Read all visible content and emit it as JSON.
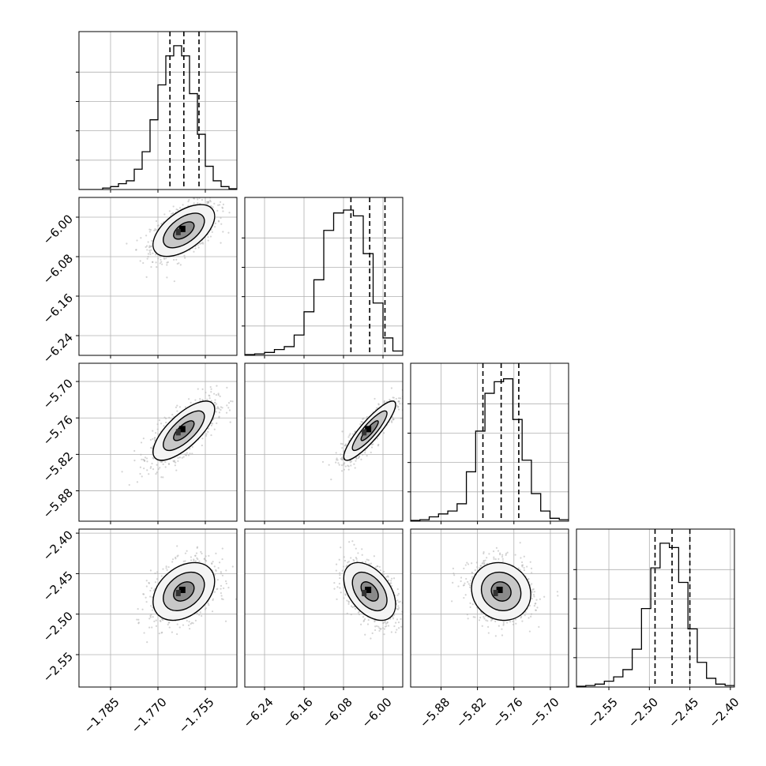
{
  "chart_data": {
    "type": "corner",
    "dimensions": [
      {
        "index": 0,
        "range": [
          -1.795,
          -1.745
        ],
        "ticks": [
          "-1.785",
          "-1.770",
          "-1.755"
        ],
        "quantiles": [
          -1.7662,
          -1.7618,
          -1.757
        ],
        "hist": [
          0,
          0,
          0,
          0.01,
          0.02,
          0.04,
          0.06,
          0.14,
          0.26,
          0.48,
          0.72,
          0.92,
          0.99,
          0.92,
          0.66,
          0.38,
          0.16,
          0.06,
          0.02,
          0.005
        ]
      },
      {
        "index": 1,
        "range": [
          -6.28,
          -5.96
        ],
        "ticks": [
          "-6.24",
          "-6.16",
          "-6.08",
          "-6.00"
        ],
        "quantiles": [
          -6.065,
          -6.027,
          -5.996
        ],
        "hist": [
          0.005,
          0.01,
          0.02,
          0.04,
          0.06,
          0.14,
          0.3,
          0.52,
          0.86,
          0.98,
          1.0,
          0.96,
          0.7,
          0.36,
          0.12,
          0.03
        ]
      },
      {
        "index": 2,
        "range": [
          -5.93,
          -5.67
        ],
        "ticks": [
          "-5.88",
          "-5.82",
          "-5.76",
          "-5.70"
        ],
        "quantiles": [
          -5.811,
          -5.781,
          -5.752
        ],
        "hist": [
          0.005,
          0.01,
          0.03,
          0.05,
          0.07,
          0.12,
          0.34,
          0.62,
          0.88,
          0.96,
          0.98,
          0.7,
          0.42,
          0.19,
          0.07,
          0.02,
          0.01
        ]
      },
      {
        "index": 3,
        "range": [
          -2.59,
          -2.395
        ],
        "ticks": [
          "-2.55",
          "-2.50",
          "-2.45",
          "-2.40"
        ],
        "quantiles": [
          -2.493,
          -2.472,
          -2.45
        ],
        "hist": [
          0.005,
          0.01,
          0.02,
          0.04,
          0.07,
          0.12,
          0.26,
          0.54,
          0.82,
          0.99,
          0.96,
          0.72,
          0.4,
          0.17,
          0.06,
          0.02,
          0.01
        ]
      }
    ],
    "pairs": [
      {
        "row": 1,
        "col": 0,
        "mean": [
          -1.7618,
          -6.027
        ],
        "sd": [
          0.0052,
          0.028
        ],
        "corr": 0.55
      },
      {
        "row": 2,
        "col": 0,
        "mean": [
          -1.7618,
          -5.781
        ],
        "sd": [
          0.0052,
          0.026
        ],
        "corr": 0.72
      },
      {
        "row": 2,
        "col": 1,
        "mean": [
          -6.027,
          -5.781
        ],
        "sd": [
          0.028,
          0.026
        ],
        "corr": 0.88
      },
      {
        "row": 3,
        "col": 0,
        "mean": [
          -1.7618,
          -2.472
        ],
        "sd": [
          0.0052,
          0.019
        ],
        "corr": 0.35
      },
      {
        "row": 3,
        "col": 1,
        "mean": [
          -6.027,
          -2.472
        ],
        "sd": [
          0.028,
          0.019
        ],
        "corr": -0.45
      },
      {
        "row": 3,
        "col": 2,
        "mean": [
          -5.781,
          -2.472
        ],
        "sd": [
          0.026,
          0.019
        ],
        "corr": -0.1
      }
    ],
    "contour_levels_sigma": [
      0.5,
      1.0,
      1.5
    ],
    "grid": true,
    "colors": {
      "hist": "#000000",
      "quantile": "#000000",
      "contour": "#000000",
      "points": "#b0b0b0",
      "grid": "#b0b0b0"
    }
  }
}
